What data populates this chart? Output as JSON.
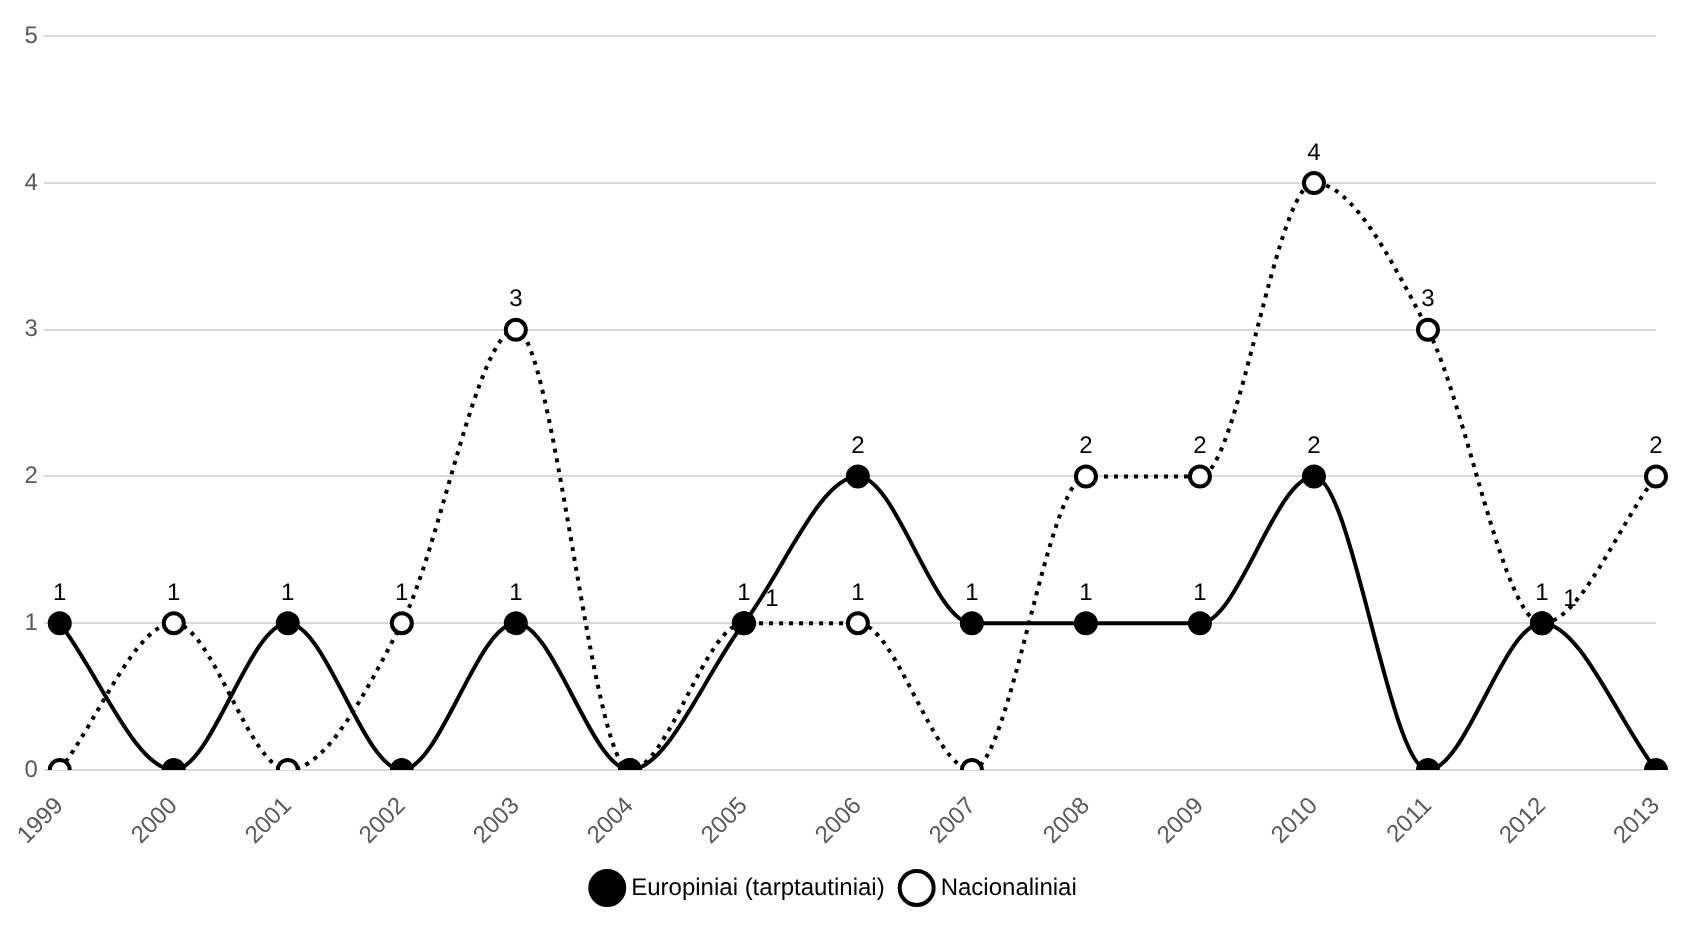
{
  "chart_data": {
    "type": "line",
    "categories": [
      "1999",
      "2000",
      "2001",
      "2002",
      "2003",
      "2004",
      "2005",
      "2006",
      "2007",
      "2008",
      "2009",
      "2010",
      "2011",
      "2012",
      "2013"
    ],
    "series": [
      {
        "name": "Europiniai (tarptautiniai)",
        "color": "#000000",
        "line_style": "solid",
        "values": [
          1,
          0,
          1,
          0,
          1,
          0,
          1,
          2,
          1,
          1,
          1,
          2,
          0,
          1,
          0
        ],
        "value_labels": [
          "1",
          null,
          "1",
          null,
          "1",
          null,
          "1",
          "2",
          "1",
          "1",
          "1",
          "2",
          null,
          "1",
          null
        ]
      },
      {
        "name": "Nacionaliniai",
        "color": "#000000",
        "line_style": "dotted",
        "values": [
          0,
          1,
          0,
          1,
          3,
          0,
          1,
          1,
          0,
          2,
          2,
          4,
          3,
          1,
          2
        ],
        "value_labels": [
          null,
          "1",
          null,
          "1",
          "3",
          null,
          "1",
          "1",
          null,
          "2",
          "2",
          "4",
          "3",
          "1",
          "2"
        ]
      }
    ],
    "ylim": [
      0,
      5
    ],
    "yticks": [
      0,
      1,
      2,
      3,
      4,
      5
    ],
    "grid": "y",
    "legend": "bottom",
    "marker": "circle"
  }
}
